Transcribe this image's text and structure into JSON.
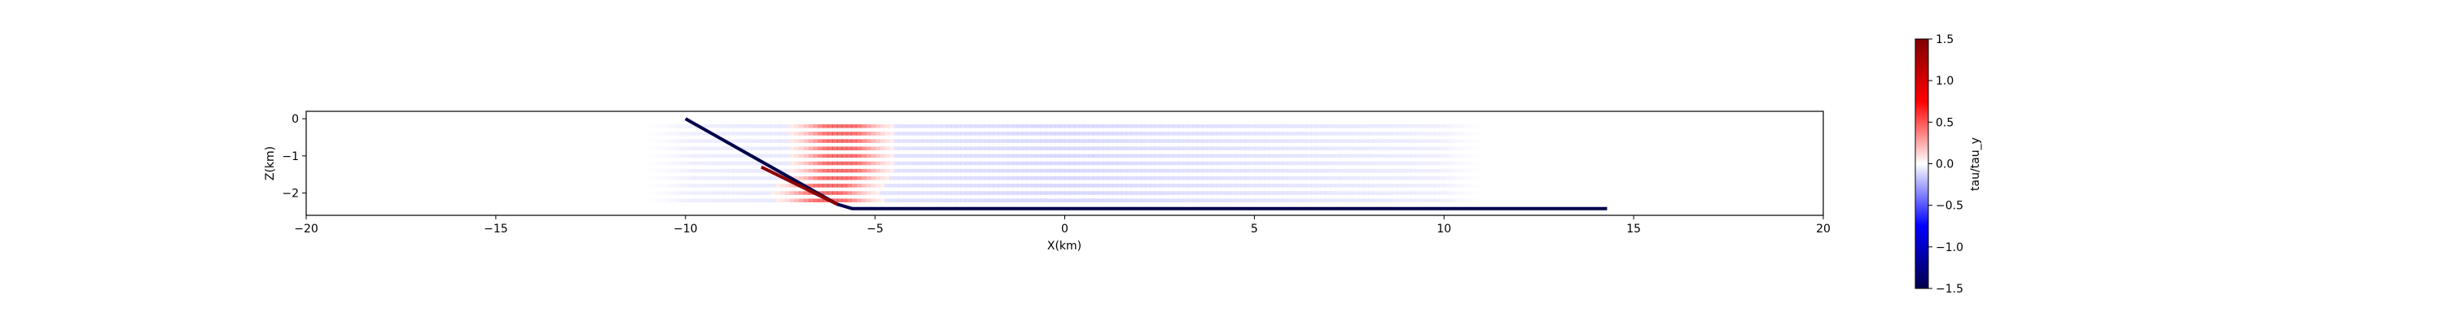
{
  "chart_data": {
    "type": "heatmap",
    "title": "",
    "xlabel": "X(km)",
    "ylabel": "Z(km)",
    "xlim": [
      -20,
      20
    ],
    "ylim": [
      -2.6,
      0.2
    ],
    "xticks": [
      -20,
      -15,
      -10,
      -5,
      0,
      5,
      10,
      15,
      20
    ],
    "yticks": [
      0,
      -1,
      -2
    ],
    "grid": false,
    "colormap": "seismic",
    "colorbar": {
      "label": "tau/tau_y",
      "range": [
        -1.5,
        1.5
      ],
      "ticks": [
        1.5,
        1.0,
        0.5,
        0.0,
        -0.5,
        -1.0,
        -1.5
      ],
      "tick_labels": [
        "1.5",
        "1.0",
        "0.5",
        "0.0",
        "−0.5",
        "−1.0",
        "−1.5"
      ]
    },
    "fault": {
      "color": "#00004c",
      "x": [
        -10,
        -6,
        -5.6,
        14.3
      ],
      "z": [
        0,
        -2.3,
        -2.42,
        -2.42
      ],
      "colored_segment": {
        "x": [
          -8,
          -6
        ],
        "z": [
          -1.3,
          -2.3
        ],
        "color": "#8b0000"
      }
    },
    "stress_rows": {
      "z": [
        -0.2,
        -0.4,
        -0.6,
        -0.8,
        -1.0,
        -1.2,
        -1.4,
        -1.6,
        -1.8,
        -2.0,
        -2.2
      ],
      "x_start": -11,
      "x_end": 11,
      "peak_x": [
        -5.9,
        -5.9,
        -5.9,
        -5.9,
        -5.9,
        -5.9,
        -5.9,
        -6.0,
        -6.2,
        -6.3,
        -6.2
      ],
      "peak_value": 0.9,
      "negative_value": -0.2
    }
  }
}
